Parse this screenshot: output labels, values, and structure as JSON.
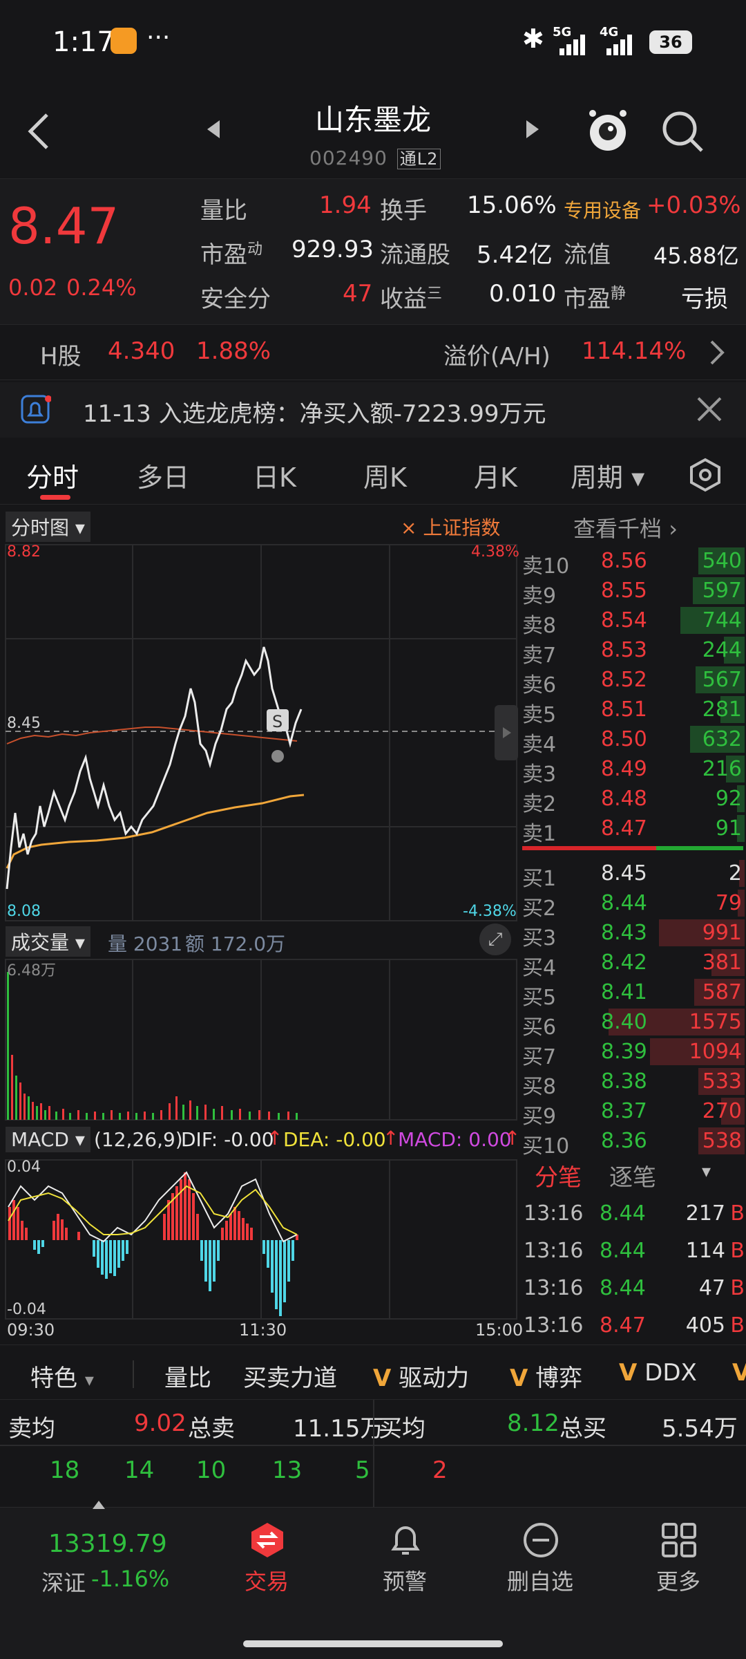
{
  "status": {
    "time": "1:17",
    "dots": "···",
    "signal1": "5G",
    "signal2": "4G",
    "battery": "36"
  },
  "header": {
    "title": "山东墨龙",
    "code": "002490",
    "badge": "通L2"
  },
  "quote": {
    "price": "8.47",
    "change": "0.02",
    "change_pct": "0.24%",
    "rows": [
      [
        {
          "l": "量比",
          "v": "1.94",
          "c": "red"
        },
        {
          "l": "换手",
          "v": "15.06%",
          "c": "white"
        },
        {
          "l": "专用设备",
          "v": "+0.03%",
          "c": "red"
        }
      ],
      [
        {
          "l": "市盈",
          "sup": "动",
          "v": "929.93",
          "c": "white"
        },
        {
          "l": "流通股",
          "v": "5.42亿",
          "c": "white"
        },
        {
          "l": "流值",
          "v": "45.88亿",
          "c": "white"
        }
      ],
      [
        {
          "l": "安全分",
          "v": "47",
          "c": "red"
        },
        {
          "l": "收益",
          "sup": "三",
          "v": "0.010",
          "c": "white"
        },
        {
          "l": "市盈",
          "sup": "静",
          "v": "亏损",
          "c": "white"
        }
      ]
    ]
  },
  "hshare": {
    "label": "H股",
    "price": "4.340",
    "pct": "1.88%",
    "premium_label": "溢价(A/H)",
    "premium": "114.14%"
  },
  "notice": {
    "text": "11-13 入选龙虎榜：净买入额-7223.99万元"
  },
  "tabs": [
    "分时",
    "多日",
    "日K",
    "周K",
    "月K",
    "周期"
  ],
  "chart": {
    "mode_label": "分时图",
    "index_label": "上证指数",
    "depth_label": "查看千档",
    "high": "8.82",
    "high_pct": "4.38%",
    "low": "8.08",
    "low_pct": "-4.38%",
    "mid": "8.45",
    "vol_label": "成交量",
    "vol_info": "量 2031",
    "amt_info": "额 172.0万",
    "vol_max": "6.48万",
    "macd_label": "MACD",
    "macd_params": "(12,26,9)",
    "dif": "DIF: -0.00",
    "dea": "DEA: -0.00",
    "macd": "MACD: 0.00",
    "macd_top": "0.04",
    "macd_bottom": "-0.04",
    "t_start": "09:30",
    "t_mid": "11:30",
    "t_end": "15:00",
    "s_marker": "S"
  },
  "book": {
    "sells": [
      {
        "l": "卖10",
        "p": "8.56",
        "v": "540"
      },
      {
        "l": "卖9",
        "p": "8.55",
        "v": "597"
      },
      {
        "l": "卖8",
        "p": "8.54",
        "v": "744"
      },
      {
        "l": "卖7",
        "p": "8.53",
        "v": "244"
      },
      {
        "l": "卖6",
        "p": "8.52",
        "v": "567"
      },
      {
        "l": "卖5",
        "p": "8.51",
        "v": "281"
      },
      {
        "l": "卖4",
        "p": "8.50",
        "v": "632"
      },
      {
        "l": "卖3",
        "p": "8.49",
        "v": "216"
      },
      {
        "l": "卖2",
        "p": "8.48",
        "v": "92"
      },
      {
        "l": "卖1",
        "p": "8.47",
        "v": "91"
      }
    ],
    "buys": [
      {
        "l": "买1",
        "p": "8.45",
        "v": "2"
      },
      {
        "l": "买2",
        "p": "8.44",
        "v": "79"
      },
      {
        "l": "买3",
        "p": "8.43",
        "v": "991"
      },
      {
        "l": "买4",
        "p": "8.42",
        "v": "381"
      },
      {
        "l": "买5",
        "p": "8.41",
        "v": "587"
      },
      {
        "l": "买6",
        "p": "8.40",
        "v": "1575"
      },
      {
        "l": "买7",
        "p": "8.39",
        "v": "1094"
      },
      {
        "l": "买8",
        "p": "8.38",
        "v": "533"
      },
      {
        "l": "买9",
        "p": "8.37",
        "v": "270"
      },
      {
        "l": "买10",
        "p": "8.36",
        "v": "538"
      }
    ],
    "tab1": "分笔",
    "tab2": "逐笔",
    "ticks": [
      {
        "t": "13:16",
        "p": "8.44",
        "v": "217",
        "s": "B"
      },
      {
        "t": "13:16",
        "p": "8.44",
        "v": "114",
        "s": "B"
      },
      {
        "t": "13:16",
        "p": "8.44",
        "v": "47",
        "s": "B"
      },
      {
        "t": "13:16",
        "p": "8.47",
        "v": "405",
        "s": "B"
      }
    ]
  },
  "features": [
    "特色",
    "量比",
    "买卖力道",
    "驱动力",
    "博弈",
    "DDX"
  ],
  "summary": {
    "sell_avg_label": "卖均",
    "sell_avg": "9.02",
    "sell_total_label": "总卖",
    "sell_total": "11.15万",
    "buy_avg_label": "买均",
    "buy_avg": "8.12",
    "buy_total_label": "总买",
    "buy_total": "5.54万",
    "sell_nums": [
      "18",
      "14",
      "10",
      "13",
      "5"
    ],
    "buy_nums": [
      "2"
    ]
  },
  "nav": {
    "index_value": "13319.79",
    "index_name": "深证",
    "index_pct": "-1.16%",
    "items": [
      "交易",
      "预警",
      "删自选",
      "更多"
    ]
  }
}
